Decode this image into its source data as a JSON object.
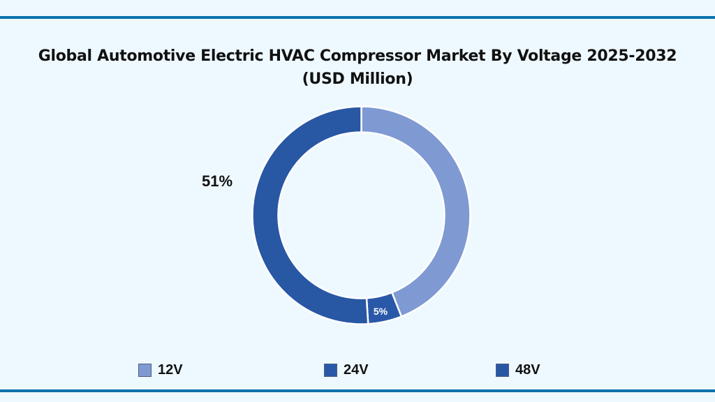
{
  "page": {
    "background": "#eef9ff",
    "rule_color": "#0a72ad"
  },
  "title": {
    "line1": "Global Automotive Electric HVAC Compressor Market By Voltage 2025-2032",
    "line2": "(USD Million)"
  },
  "legend": {
    "items": [
      {
        "label": "12V",
        "color": "#7f99d3"
      },
      {
        "label": "24V",
        "color": "#2a58a8"
      },
      {
        "label": "48V",
        "color": "#2857a4"
      }
    ]
  },
  "labels": {
    "outside_48v": "51%",
    "inside_24v": "5%"
  },
  "chart_data": {
    "type": "pie",
    "subtype": "donut",
    "title": "Global Automotive Electric HVAC Compressor Market By Voltage 2025-2032 (USD Million)",
    "categories": [
      "12V",
      "24V",
      "48V"
    ],
    "values": [
      44,
      5,
      51
    ],
    "units": "percent share",
    "colors": [
      "#7f99d3",
      "#2a58a8",
      "#2857a4"
    ],
    "data_labels": [
      {
        "category": "24V",
        "text": "5%",
        "position": "inside"
      },
      {
        "category": "48V",
        "text": "51%",
        "position": "outside-left"
      }
    ],
    "start_angle_deg": 0,
    "direction": "clockwise",
    "legend_position": "bottom"
  }
}
